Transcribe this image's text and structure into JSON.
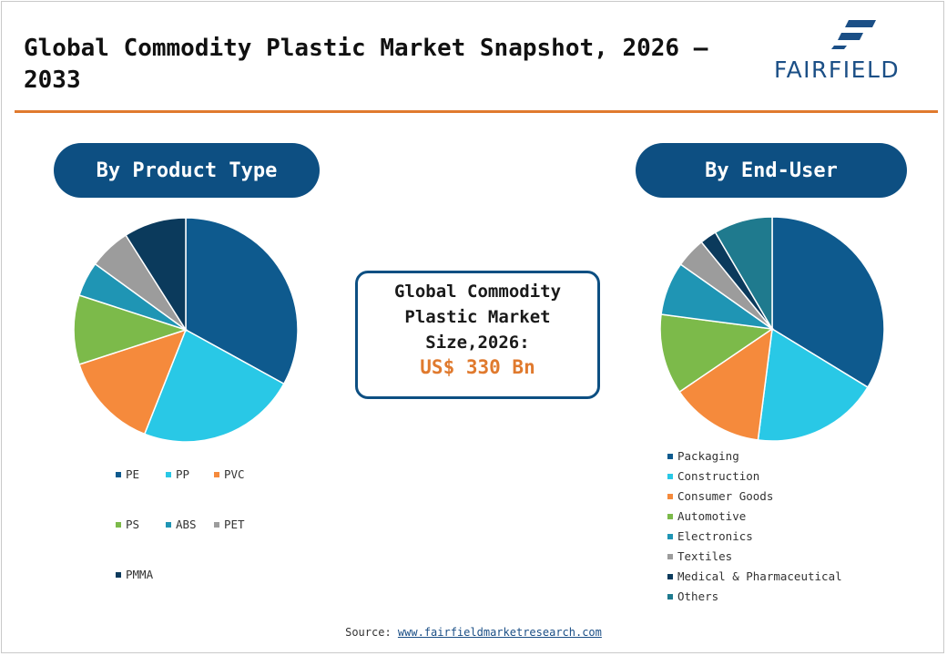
{
  "header": {
    "title": "Global Commodity Plastic Market Snapshot, 2026 – 2033",
    "logo_text": "FAIRFIELD",
    "logo_color": "#1b4f86"
  },
  "accent_color": "#e07a2e",
  "brand_color": "#0d4f82",
  "center": {
    "label": "Global Commodity Plastic Market Size,2026:",
    "value": "US$ 330 Bn"
  },
  "footer": {
    "source_label": "Source:",
    "source_link": "www.fairfieldmarketresearch.com"
  },
  "chart_data": [
    {
      "type": "pie",
      "title": "By Product Type",
      "categories": [
        "PE",
        "PP",
        "PVC",
        "PS",
        "ABS",
        "PET",
        "PMMA"
      ],
      "values": [
        33,
        23,
        14,
        10,
        5,
        6,
        9
      ],
      "colors": [
        "#0e5a8e",
        "#29c8e6",
        "#f58a3c",
        "#7cba4a",
        "#1f95b4",
        "#9c9c9c",
        "#0b3a5c"
      ],
      "legend_position": "bottom"
    },
    {
      "type": "pie",
      "title": "By End-User",
      "categories": [
        "Packaging",
        "Construction",
        "Consumer Goods",
        "Automotive",
        "Electronics",
        "Textiles",
        "Medical & Pharmaceutical",
        "Others"
      ],
      "values": [
        35,
        19,
        14,
        12,
        8,
        4.5,
        2.5,
        8.8
      ],
      "colors": [
        "#0e5a8e",
        "#29c8e6",
        "#f58a3c",
        "#7cba4a",
        "#1f95b4",
        "#9c9c9c",
        "#0b3a5c",
        "#1f7a8e"
      ],
      "legend_position": "bottom"
    }
  ]
}
